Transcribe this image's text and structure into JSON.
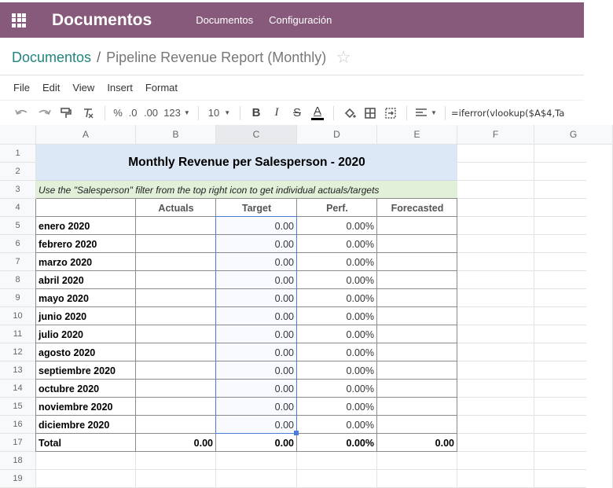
{
  "app": {
    "title": "Documentos",
    "menu": [
      "Documentos",
      "Configuración"
    ]
  },
  "breadcrumb": {
    "parent": "Documentos",
    "separator": "/",
    "current": "Pipeline Revenue Report (Monthly)"
  },
  "menubar": [
    "File",
    "Edit",
    "View",
    "Insert",
    "Format"
  ],
  "toolbar": {
    "percent": "%",
    "dec_decrease": ".0",
    "dec_increase": ".00",
    "number_format": "123",
    "font_size": "10",
    "bold": "B",
    "italic": "I",
    "strike": "S",
    "text_color": "A",
    "formula": "=iferror(vlookup($A$4,Ta"
  },
  "colors": {
    "brand": "#875a7b",
    "link": "#21847d",
    "title_bg": "#dce8f6",
    "note_bg": "#e2efd9",
    "selection": "#4a7cd8"
  },
  "columns": [
    "A",
    "B",
    "C",
    "D",
    "E",
    "F",
    "G"
  ],
  "rows": [
    "1",
    "2",
    "3",
    "4",
    "5",
    "6",
    "7",
    "8",
    "9",
    "10",
    "11",
    "12",
    "13",
    "14",
    "15",
    "16",
    "17",
    "18",
    "19"
  ],
  "sheet": {
    "title": "Monthly Revenue per Salesperson - 2020",
    "note": "Use the \"Salesperson\" filter from the top right icon to get individual actuals/targets",
    "headers": [
      "Actuals",
      "Target",
      "Perf.",
      "Forecasted"
    ],
    "months": [
      {
        "label": "enero 2020",
        "target": "0.00",
        "perf": "0.00%"
      },
      {
        "label": "febrero 2020",
        "target": "0.00",
        "perf": "0.00%"
      },
      {
        "label": "marzo 2020",
        "target": "0.00",
        "perf": "0.00%"
      },
      {
        "label": "abril 2020",
        "target": "0.00",
        "perf": "0.00%"
      },
      {
        "label": "mayo 2020",
        "target": "0.00",
        "perf": "0.00%"
      },
      {
        "label": "junio 2020",
        "target": "0.00",
        "perf": "0.00%"
      },
      {
        "label": "julio 2020",
        "target": "0.00",
        "perf": "0.00%"
      },
      {
        "label": "agosto 2020",
        "target": "0.00",
        "perf": "0.00%"
      },
      {
        "label": "septiembre 2020",
        "target": "0.00",
        "perf": "0.00%"
      },
      {
        "label": "octubre 2020",
        "target": "0.00",
        "perf": "0.00%"
      },
      {
        "label": "noviembre 2020",
        "target": "0.00",
        "perf": "0.00%"
      },
      {
        "label": "diciembre 2020",
        "target": "0.00",
        "perf": "0.00%"
      }
    ],
    "total": {
      "label": "Total",
      "actuals": "0.00",
      "target": "0.00",
      "perf": "0.00%",
      "forecasted": "0.00"
    }
  }
}
